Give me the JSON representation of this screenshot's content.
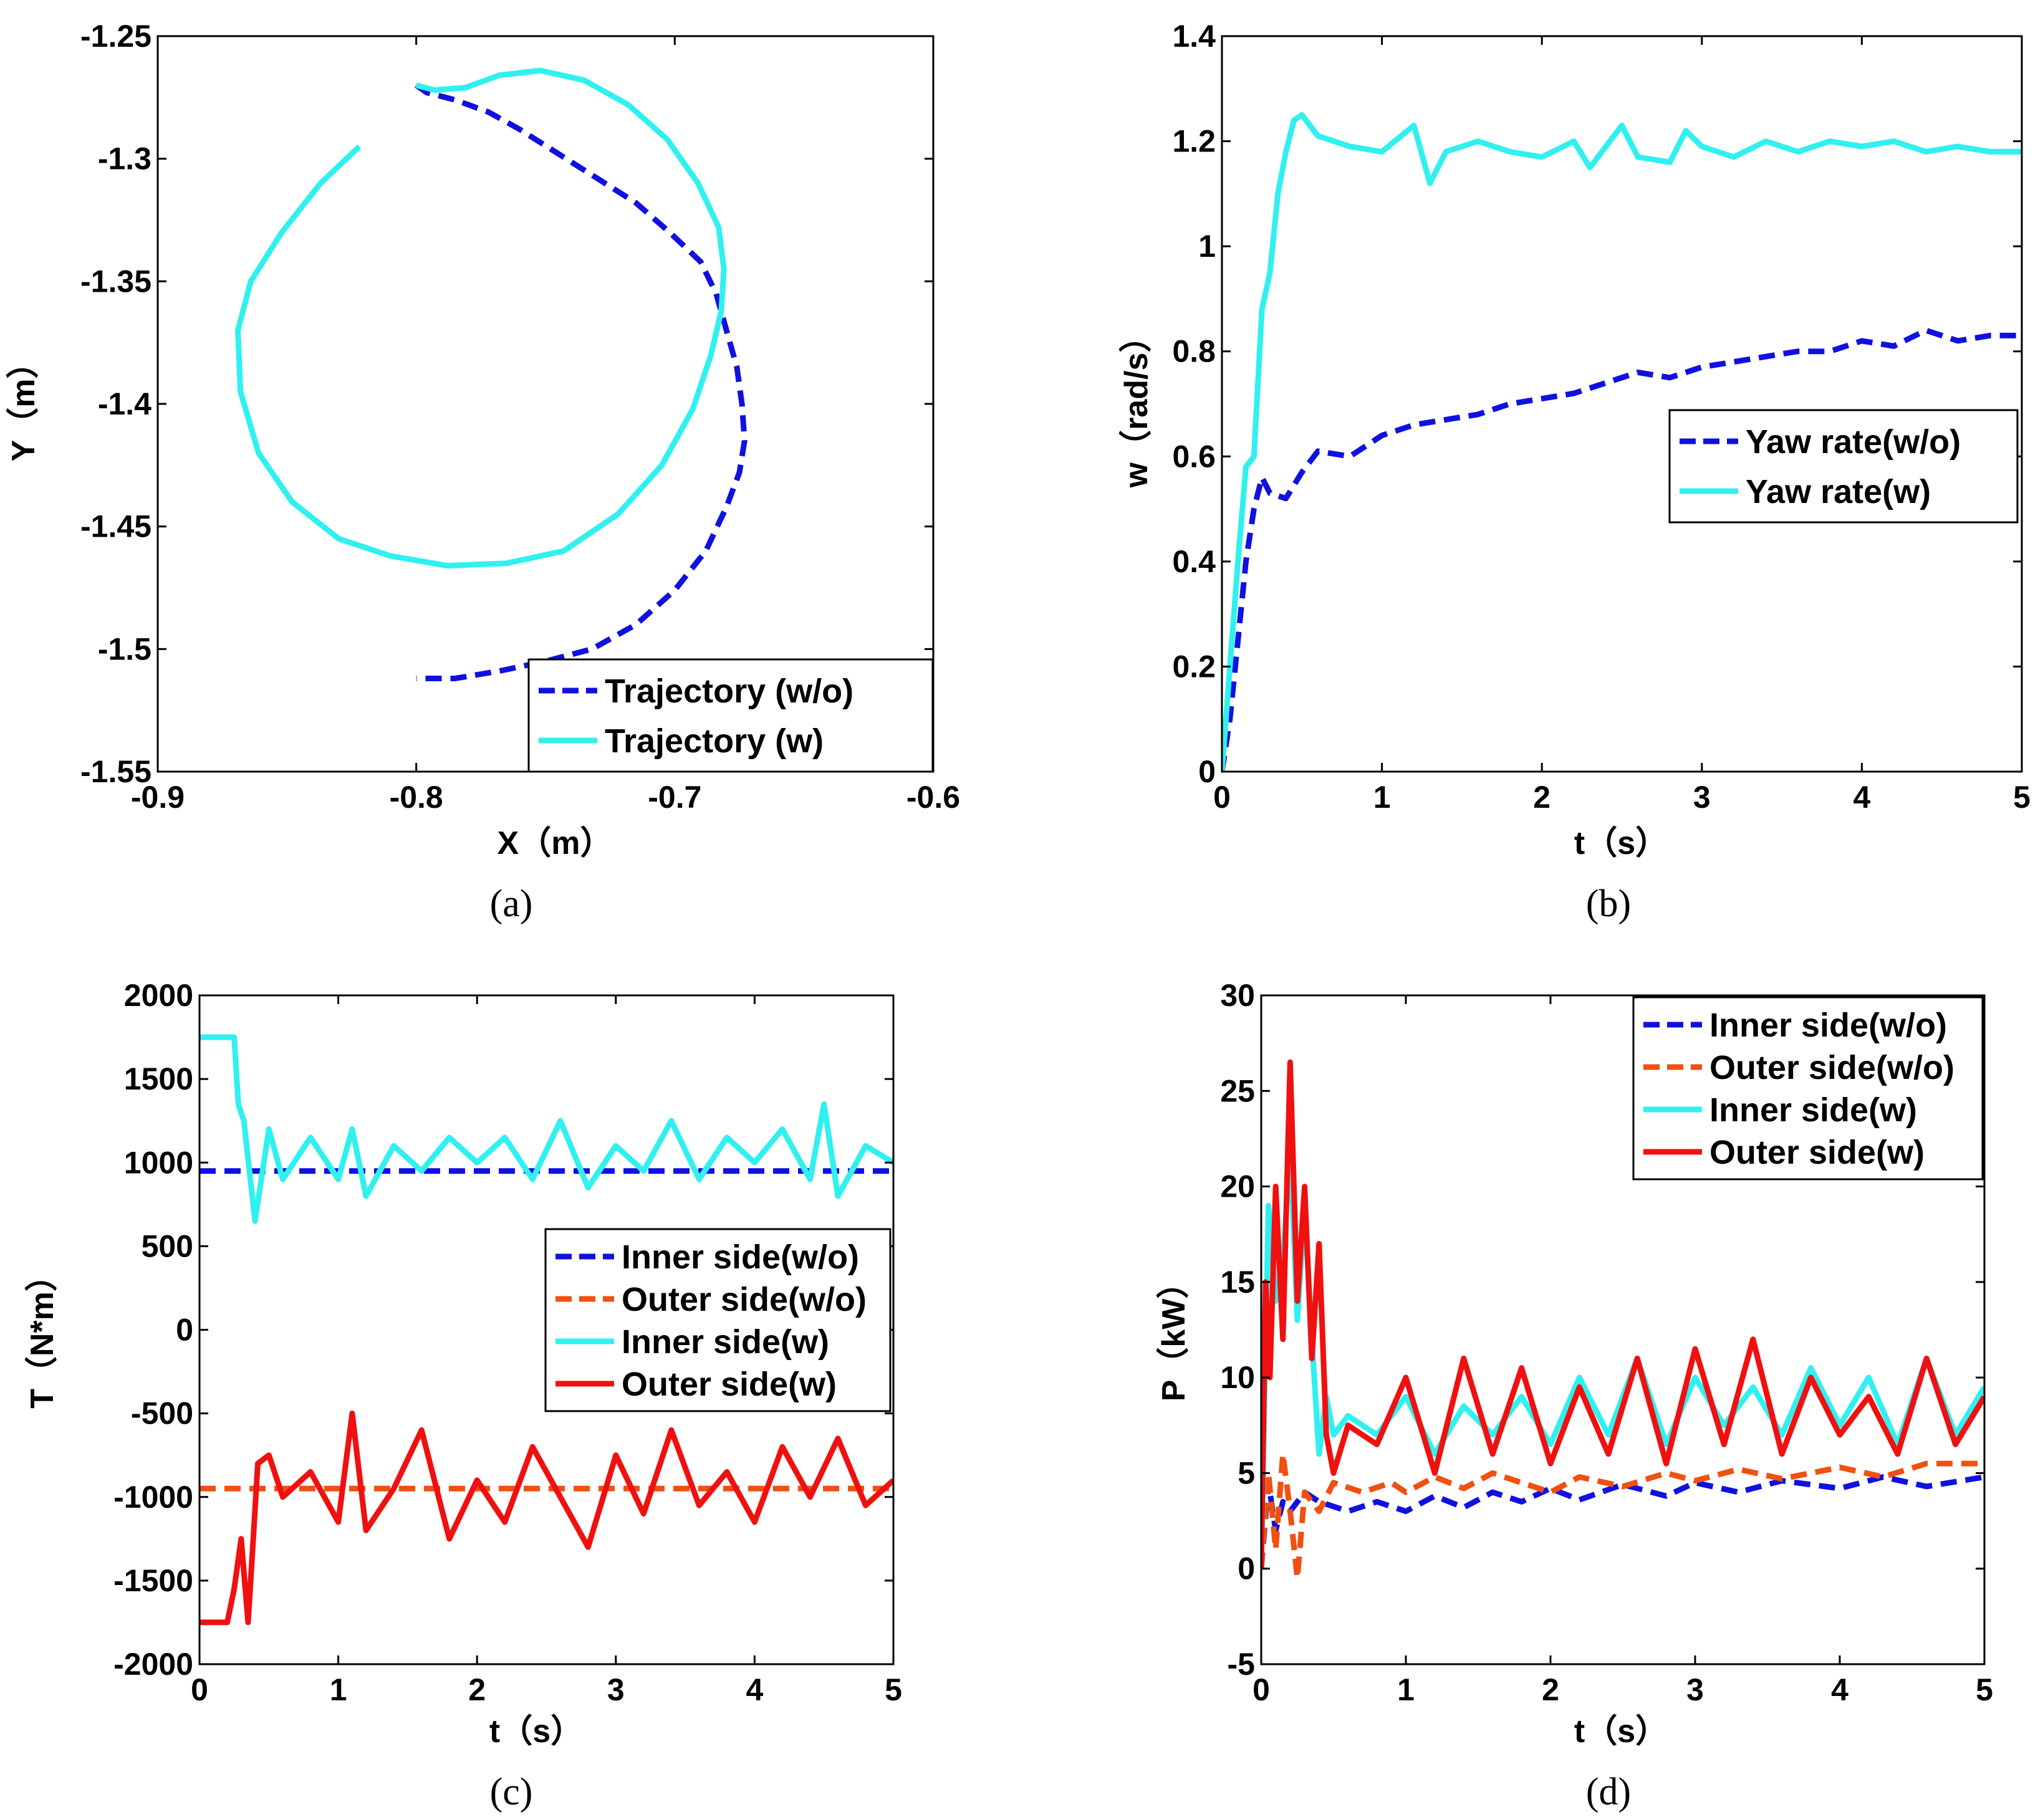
{
  "chart_data": [
    {
      "id": "a",
      "type": "line",
      "panel_label": "(a)",
      "xlabel": "X（m）",
      "ylabel": "Y（m）",
      "xlim": [
        -0.9,
        -0.6
      ],
      "ylim": [
        -1.55,
        -1.25
      ],
      "xticks": [
        -0.9,
        -0.8,
        -0.7,
        -0.6
      ],
      "xtick_labels": [
        "-0.9",
        "-0.8",
        "-0.7",
        "-0.6"
      ],
      "yticks": [
        -1.55,
        -1.5,
        -1.45,
        -1.4,
        -1.35,
        -1.3,
        -1.25
      ],
      "ytick_labels": [
        "-1.55",
        "-1.5",
        "-1.45",
        "-1.4",
        "-1.35",
        "-1.3",
        "-1.25"
      ],
      "legend_position": "bottom-right",
      "series": [
        {
          "name": "Trajectory (w/o)",
          "color": "#1010e0",
          "style": "dashed",
          "x": [
            -0.8,
            -0.796,
            -0.785,
            -0.772,
            -0.76,
            -0.745,
            -0.73,
            -0.715,
            -0.702,
            -0.69,
            -0.684,
            -0.68,
            -0.676,
            -0.674,
            -0.673,
            -0.675,
            -0.68,
            -0.688,
            -0.7,
            -0.715,
            -0.732,
            -0.75,
            -0.768,
            -0.785,
            -0.8
          ],
          "y": [
            -1.27,
            -1.273,
            -1.276,
            -1.281,
            -1.288,
            -1.298,
            -1.308,
            -1.318,
            -1.33,
            -1.342,
            -1.355,
            -1.37,
            -1.385,
            -1.4,
            -1.415,
            -1.428,
            -1.442,
            -1.46,
            -1.476,
            -1.49,
            -1.5,
            -1.505,
            -1.509,
            -1.512,
            -1.512
          ]
        },
        {
          "name": "Trajectory (w)",
          "color": "#30f0f0",
          "style": "solid",
          "x": [
            -0.8,
            -0.793,
            -0.781,
            -0.768,
            -0.752,
            -0.735,
            -0.718,
            -0.703,
            -0.691,
            -0.683,
            -0.681,
            -0.682,
            -0.686,
            -0.693,
            -0.705,
            -0.722,
            -0.743,
            -0.765,
            -0.788,
            -0.81,
            -0.83,
            -0.848,
            -0.861,
            -0.868,
            -0.869,
            -0.864,
            -0.852,
            -0.837,
            -0.822
          ],
          "y": [
            -1.27,
            -1.272,
            -1.271,
            -1.266,
            -1.264,
            -1.268,
            -1.278,
            -1.292,
            -1.31,
            -1.328,
            -1.345,
            -1.362,
            -1.38,
            -1.402,
            -1.425,
            -1.445,
            -1.46,
            -1.465,
            -1.466,
            -1.462,
            -1.455,
            -1.44,
            -1.42,
            -1.395,
            -1.37,
            -1.35,
            -1.33,
            -1.31,
            -1.295
          ]
        }
      ]
    },
    {
      "id": "b",
      "type": "line",
      "panel_label": "(b)",
      "xlabel": "t（s）",
      "ylabel": "w（rad/s）",
      "xlim": [
        0,
        5
      ],
      "ylim": [
        0,
        1.4
      ],
      "xticks": [
        0,
        1,
        2,
        3,
        4,
        5
      ],
      "xtick_labels": [
        "0",
        "1",
        "2",
        "3",
        "4",
        "5"
      ],
      "yticks": [
        0,
        0.2,
        0.4,
        0.6,
        0.8,
        1.0,
        1.2,
        1.4
      ],
      "ytick_labels": [
        "0",
        "0.2",
        "0.4",
        "0.6",
        "0.8",
        "1",
        "1.2",
        "1.4"
      ],
      "legend_position": "center-right",
      "series": [
        {
          "name": "Yaw rate(w/o)",
          "color": "#1010e0",
          "style": "dashed",
          "x": [
            0,
            0.05,
            0.1,
            0.15,
            0.2,
            0.25,
            0.3,
            0.4,
            0.5,
            0.6,
            0.8,
            1.0,
            1.2,
            1.4,
            1.6,
            1.8,
            2.0,
            2.2,
            2.4,
            2.6,
            2.8,
            3.0,
            3.2,
            3.4,
            3.6,
            3.8,
            4.0,
            4.2,
            4.4,
            4.6,
            4.8,
            5.0
          ],
          "y": [
            0,
            0.1,
            0.25,
            0.4,
            0.5,
            0.56,
            0.53,
            0.52,
            0.57,
            0.61,
            0.6,
            0.64,
            0.66,
            0.67,
            0.68,
            0.7,
            0.71,
            0.72,
            0.74,
            0.76,
            0.75,
            0.77,
            0.78,
            0.79,
            0.8,
            0.8,
            0.82,
            0.81,
            0.84,
            0.82,
            0.83,
            0.83
          ]
        },
        {
          "name": "Yaw rate(w)",
          "color": "#30f0f0",
          "style": "solid",
          "x": [
            0,
            0.05,
            0.1,
            0.15,
            0.2,
            0.25,
            0.3,
            0.35,
            0.4,
            0.45,
            0.5,
            0.6,
            0.8,
            1.0,
            1.2,
            1.3,
            1.4,
            1.6,
            1.8,
            2.0,
            2.2,
            2.3,
            2.5,
            2.6,
            2.8,
            2.9,
            3.0,
            3.2,
            3.4,
            3.6,
            3.8,
            4.0,
            4.2,
            4.4,
            4.6,
            4.8,
            5.0
          ],
          "y": [
            0,
            0.2,
            0.4,
            0.58,
            0.6,
            0.88,
            0.95,
            1.1,
            1.18,
            1.24,
            1.25,
            1.21,
            1.19,
            1.18,
            1.23,
            1.12,
            1.18,
            1.2,
            1.18,
            1.17,
            1.2,
            1.15,
            1.23,
            1.17,
            1.16,
            1.22,
            1.19,
            1.17,
            1.2,
            1.18,
            1.2,
            1.19,
            1.2,
            1.18,
            1.19,
            1.18,
            1.18
          ]
        }
      ]
    },
    {
      "id": "c",
      "type": "line",
      "panel_label": "(c)",
      "xlabel": "t（s）",
      "ylabel": "T（N*m）",
      "xlim": [
        0,
        5
      ],
      "ylim": [
        -2000,
        2000
      ],
      "xticks": [
        0,
        1,
        2,
        3,
        4,
        5
      ],
      "xtick_labels": [
        "0",
        "1",
        "2",
        "3",
        "4",
        "5"
      ],
      "yticks": [
        -2000,
        -1500,
        -1000,
        -500,
        0,
        500,
        1000,
        1500,
        2000
      ],
      "ytick_labels": [
        "-2000",
        "-1500",
        "-1000",
        "-500",
        "0",
        "500",
        "1000",
        "1500",
        "2000"
      ],
      "legend_position": "center-right",
      "series": [
        {
          "name": "Inner side(w/o)",
          "color": "#1010e0",
          "style": "dashed",
          "x": [
            0,
            5
          ],
          "y": [
            950,
            950
          ]
        },
        {
          "name": "Outer side(w/o)",
          "color": "#f05010",
          "style": "dashed",
          "x": [
            0,
            5
          ],
          "y": [
            -950,
            -950
          ]
        },
        {
          "name": "Inner side(w)",
          "color": "#30f0f0",
          "style": "solid",
          "x": [
            0,
            0.25,
            0.28,
            0.32,
            0.4,
            0.5,
            0.6,
            0.8,
            1.0,
            1.1,
            1.2,
            1.4,
            1.6,
            1.8,
            2.0,
            2.2,
            2.4,
            2.6,
            2.8,
            3.0,
            3.2,
            3.4,
            3.6,
            3.8,
            4.0,
            4.2,
            4.4,
            4.5,
            4.6,
            4.8,
            5.0
          ],
          "y": [
            1750,
            1750,
            1350,
            1250,
            650,
            1200,
            900,
            1150,
            900,
            1200,
            800,
            1100,
            950,
            1150,
            1000,
            1150,
            900,
            1250,
            850,
            1100,
            950,
            1250,
            900,
            1150,
            1000,
            1200,
            900,
            1350,
            800,
            1100,
            1000
          ]
        },
        {
          "name": "Outer side(w)",
          "color": "#f01010",
          "style": "solid",
          "x": [
            0,
            0.2,
            0.25,
            0.3,
            0.35,
            0.38,
            0.42,
            0.5,
            0.6,
            0.8,
            1.0,
            1.1,
            1.2,
            1.4,
            1.6,
            1.8,
            2.0,
            2.2,
            2.4,
            2.6,
            2.8,
            3.0,
            3.2,
            3.4,
            3.6,
            3.8,
            4.0,
            4.2,
            4.4,
            4.6,
            4.8,
            5.0
          ],
          "y": [
            -1750,
            -1750,
            -1550,
            -1250,
            -1750,
            -1350,
            -800,
            -750,
            -1000,
            -850,
            -1150,
            -500,
            -1200,
            -950,
            -600,
            -1250,
            -900,
            -1150,
            -700,
            -1000,
            -1300,
            -750,
            -1100,
            -600,
            -1050,
            -850,
            -1150,
            -700,
            -1000,
            -650,
            -1050,
            -900
          ]
        }
      ]
    },
    {
      "id": "d",
      "type": "line",
      "panel_label": "(d)",
      "xlabel": "t（s）",
      "ylabel": "P（kW）",
      "xlim": [
        0,
        5
      ],
      "ylim": [
        -5,
        30
      ],
      "xticks": [
        0,
        1,
        2,
        3,
        4,
        5
      ],
      "xtick_labels": [
        "0",
        "1",
        "2",
        "3",
        "4",
        "5"
      ],
      "yticks": [
        -5,
        0,
        5,
        10,
        15,
        20,
        25,
        30
      ],
      "ytick_labels": [
        "-5",
        "0",
        "5",
        "10",
        "15",
        "20",
        "25",
        "30"
      ],
      "legend_position": "top-right",
      "series": [
        {
          "name": "Inner side(w/o)",
          "color": "#1010e0",
          "style": "dashed",
          "x": [
            0,
            0.05,
            0.1,
            0.15,
            0.2,
            0.3,
            0.4,
            0.6,
            0.8,
            1.0,
            1.2,
            1.4,
            1.6,
            1.8,
            2.0,
            2.2,
            2.5,
            2.8,
            3.0,
            3.3,
            3.6,
            4.0,
            4.3,
            4.6,
            5.0
          ],
          "y": [
            0,
            4.5,
            2,
            3.5,
            3,
            4,
            3.5,
            3,
            3.5,
            3,
            3.8,
            3.2,
            4,
            3.5,
            4.2,
            3.6,
            4.4,
            3.8,
            4.5,
            4,
            4.6,
            4.2,
            4.8,
            4.3,
            4.8
          ]
        },
        {
          "name": "Outer side(w/o)",
          "color": "#f05010",
          "style": "dashed",
          "x": [
            0,
            0.05,
            0.1,
            0.15,
            0.2,
            0.25,
            0.3,
            0.4,
            0.5,
            0.7,
            0.9,
            1.0,
            1.2,
            1.4,
            1.6,
            1.8,
            2.0,
            2.2,
            2.5,
            2.8,
            3.0,
            3.3,
            3.6,
            4.0,
            4.3,
            4.6,
            5.0
          ],
          "y": [
            0,
            5,
            1,
            6,
            3,
            -0.5,
            4,
            3,
            4.5,
            4,
            4.5,
            4,
            4.8,
            4.2,
            5,
            4.5,
            4,
            4.8,
            4.3,
            5,
            4.6,
            5.2,
            4.7,
            5.3,
            4.8,
            5.5,
            5.5
          ]
        },
        {
          "name": "Inner side(w)",
          "color": "#30f0f0",
          "style": "solid",
          "x": [
            0,
            0.05,
            0.1,
            0.15,
            0.2,
            0.25,
            0.3,
            0.35,
            0.4,
            0.45,
            0.5,
            0.6,
            0.8,
            1.0,
            1.2,
            1.4,
            1.6,
            1.8,
            2.0,
            2.2,
            2.4,
            2.6,
            2.8,
            3.0,
            3.2,
            3.4,
            3.6,
            3.8,
            4.0,
            4.2,
            4.4,
            4.6,
            4.8,
            5.0
          ],
          "y": [
            0,
            19,
            14,
            16,
            22,
            13,
            19,
            12,
            6,
            9,
            7,
            8,
            7,
            9,
            6,
            8.5,
            7,
            9,
            6.5,
            10,
            7,
            11,
            6.5,
            10,
            7.5,
            9.5,
            7,
            10.5,
            7.5,
            10,
            6.5,
            11,
            7,
            9.5
          ]
        },
        {
          "name": "Outer side(w)",
          "color": "#f01010",
          "style": "solid",
          "x": [
            0,
            0.03,
            0.06,
            0.1,
            0.15,
            0.2,
            0.25,
            0.3,
            0.35,
            0.4,
            0.45,
            0.5,
            0.6,
            0.8,
            1.0,
            1.2,
            1.4,
            1.6,
            1.8,
            2.0,
            2.2,
            2.4,
            2.6,
            2.8,
            3.0,
            3.2,
            3.4,
            3.6,
            3.8,
            4.0,
            4.2,
            4.4,
            4.6,
            4.8,
            5.0
          ],
          "y": [
            0,
            15,
            10,
            20,
            12,
            26.5,
            14,
            20,
            11,
            17,
            7,
            5,
            7.5,
            6.5,
            10,
            5,
            11,
            6,
            10.5,
            5.5,
            9.5,
            6,
            11,
            5.5,
            11.5,
            6.5,
            12,
            6,
            10,
            7,
            9,
            6,
            11,
            6.5,
            9
          ]
        }
      ]
    }
  ]
}
